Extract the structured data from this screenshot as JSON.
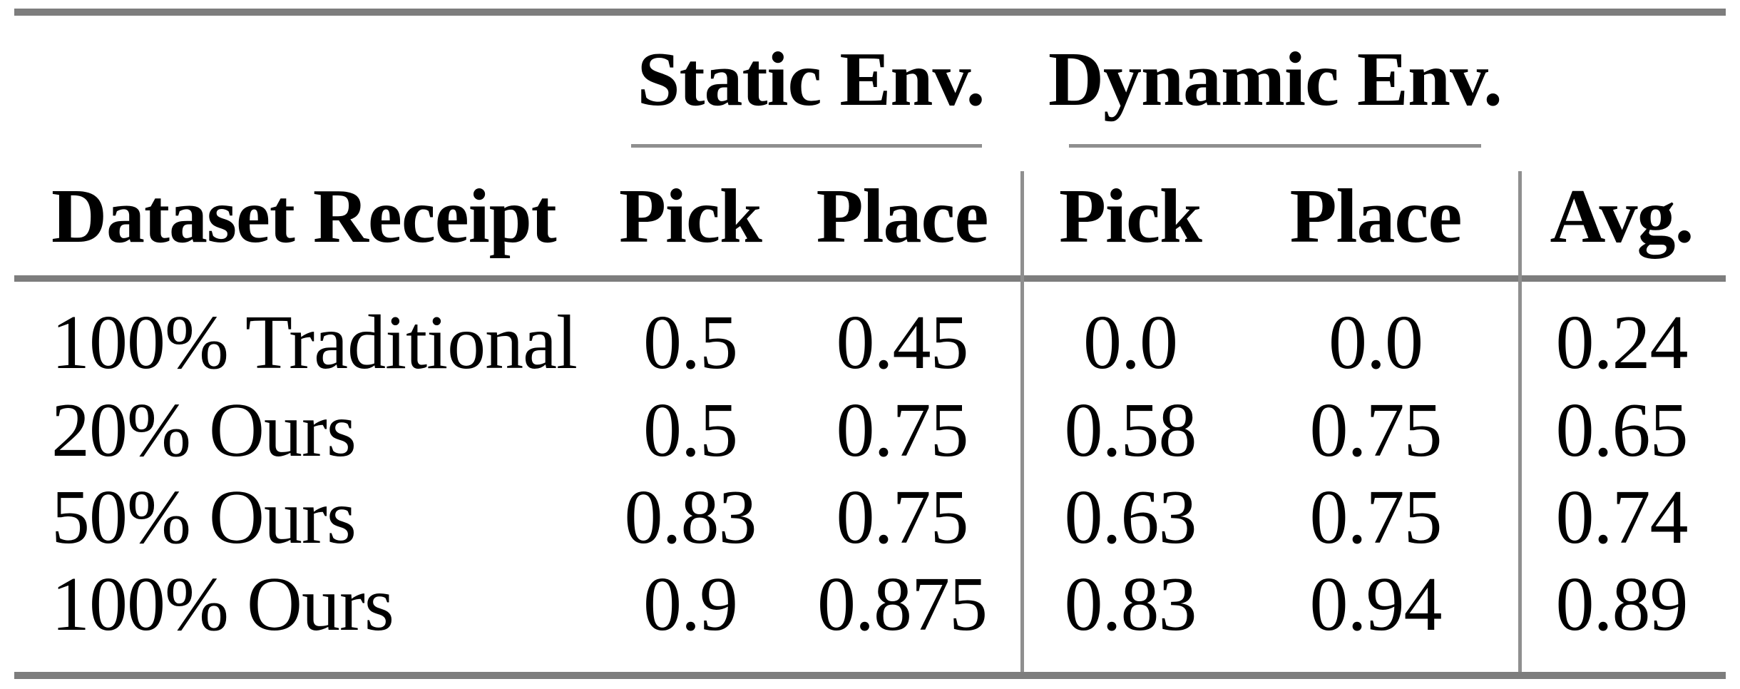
{
  "page": {
    "background_color": "#ffffff",
    "text_color": "#000000",
    "thick_rule_color": "#7d7d7d",
    "thin_rule_color": "#8f8f8f"
  },
  "table": {
    "group_headers": [
      {
        "label": "Static Env."
      },
      {
        "label": "Dynamic Env."
      }
    ],
    "columns": [
      "Dataset Receipt",
      "Pick",
      "Place",
      "Pick",
      "Place",
      "Avg."
    ],
    "rows": [
      {
        "cells": [
          "100% Traditional",
          "0.5",
          "0.45",
          "0.0",
          "0.0",
          "0.24"
        ]
      },
      {
        "cells": [
          "20% Ours",
          "0.5",
          "0.75",
          "0.58",
          "0.75",
          "0.65"
        ]
      },
      {
        "cells": [
          "50% Ours",
          "0.83",
          "0.75",
          "0.63",
          "0.75",
          "0.74"
        ]
      },
      {
        "cells": [
          "100% Ours",
          "0.9",
          "0.875",
          "0.83",
          "0.94",
          "0.89"
        ]
      }
    ]
  }
}
